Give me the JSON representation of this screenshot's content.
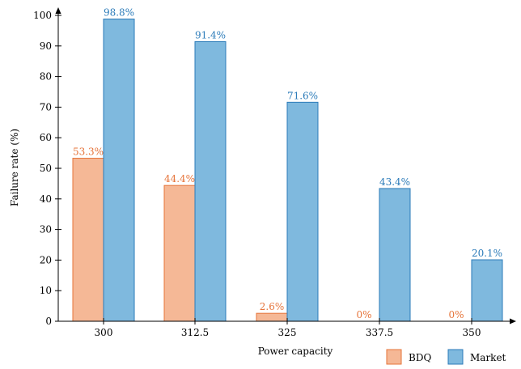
{
  "chart_data": {
    "type": "bar",
    "title": "",
    "xlabel": "Power capacity",
    "ylabel": "Failure rate (%)",
    "categories": [
      "300",
      "312.5",
      "325",
      "337.5",
      "350"
    ],
    "ylim": [
      0,
      100
    ],
    "yticks": [
      0,
      10,
      20,
      30,
      40,
      50,
      60,
      70,
      80,
      90,
      100
    ],
    "legend_position": "bottom-right",
    "grid": false,
    "series": [
      {
        "name": "BDQ",
        "values": [
          53.3,
          44.4,
          2.6,
          0,
          0
        ],
        "labels": [
          "53.3%",
          "44.4%",
          "2.6%",
          "0%",
          "0%"
        ],
        "fill": "#f5b896",
        "stroke": "#e6743a",
        "label_color": "#e6743a"
      },
      {
        "name": "Market",
        "values": [
          98.8,
          91.4,
          71.6,
          43.4,
          20.1
        ],
        "labels": [
          "98.8%",
          "91.4%",
          "71.6%",
          "43.4%",
          "20.1%"
        ],
        "fill": "#7fb9de",
        "stroke": "#2b7bb9",
        "label_color": "#2b7bb9"
      }
    ]
  }
}
